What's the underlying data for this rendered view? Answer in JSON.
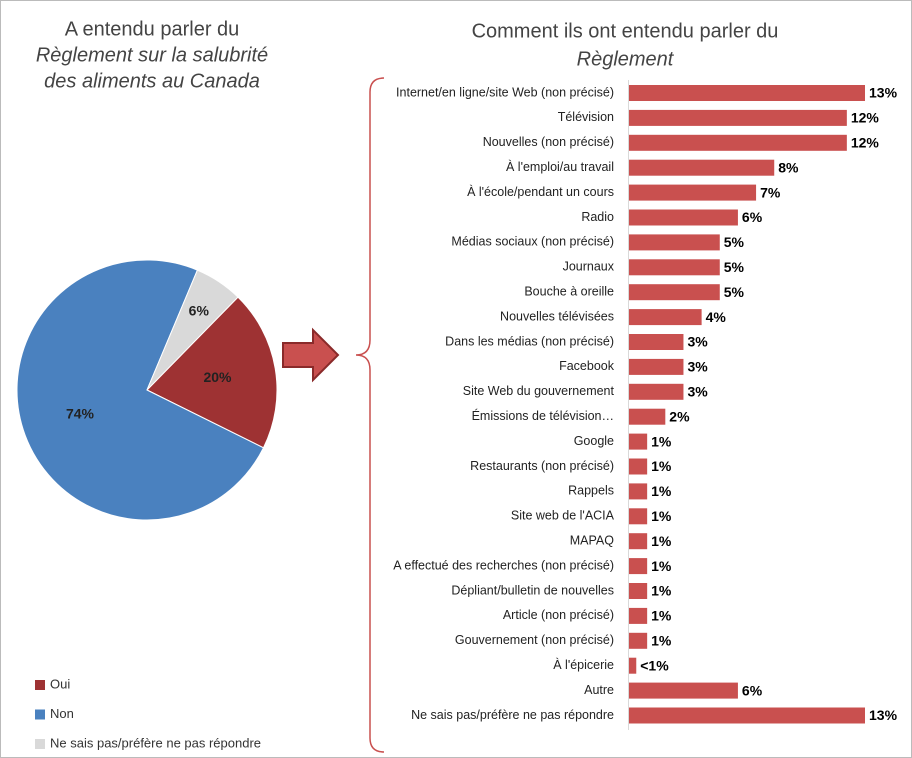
{
  "chart_data": [
    {
      "type": "pie",
      "title": [
        "A entendu parler du",
        "Règlement sur la salubrité",
        "des aliments au Canada"
      ],
      "series": [
        {
          "name": "Oui",
          "color": "#9e3233",
          "values": [
            20
          ],
          "value_labels": [
            "20%"
          ]
        },
        {
          "name": "Non",
          "color": "#4a81bf",
          "values": [
            74
          ],
          "value_labels": [
            "74%"
          ]
        },
        {
          "name": "Ne sais pas/préfère ne pas répondre",
          "color": "#d9d9d9",
          "values": [
            6
          ],
          "value_labels": [
            "6%"
          ]
        }
      ]
    },
    {
      "type": "hbar",
      "title": [
        "Comment ils ont entendu parler du",
        "Règlement"
      ],
      "color": "#c9504f",
      "categories": [
        "Internet/en ligne/site Web (non précisé)",
        "Télévision",
        "Nouvelles (non précisé)",
        "À l'emploi/au travail",
        "À l'école/pendant un cours",
        "Radio",
        "Médias sociaux (non précisé)",
        "Journaux",
        "Bouche à oreille",
        "Nouvelles télévisées",
        "Dans les médias (non précisé)",
        "Facebook",
        "Site Web du gouvernement",
        "Émissions de télévision…",
        "Google",
        "Restaurants (non précisé)",
        "Rappels",
        "Site web de l'ACIA",
        "MAPAQ",
        "A effectué des recherches (non précisé)",
        "Dépliant/bulletin de nouvelles",
        "Article (non précisé)",
        "Gouvernement (non précisé)",
        "À l'épicerie",
        "Autre",
        "Ne sais pas/préfère ne pas répondre"
      ],
      "values": [
        13,
        12,
        12,
        8,
        7,
        6,
        5,
        5,
        5,
        4,
        3,
        3,
        3,
        2,
        1,
        1,
        1,
        1,
        1,
        1,
        1,
        1,
        1,
        0.4,
        6,
        13
      ],
      "value_labels": [
        "13%",
        "12%",
        "12%",
        "8%",
        "7%",
        "6%",
        "5%",
        "5%",
        "5%",
        "4%",
        "3%",
        "3%",
        "3%",
        "2%",
        "1%",
        "1%",
        "1%",
        "1%",
        "1%",
        "1%",
        "1%",
        "1%",
        "1%",
        "<1%",
        "6%",
        "13%"
      ]
    }
  ]
}
